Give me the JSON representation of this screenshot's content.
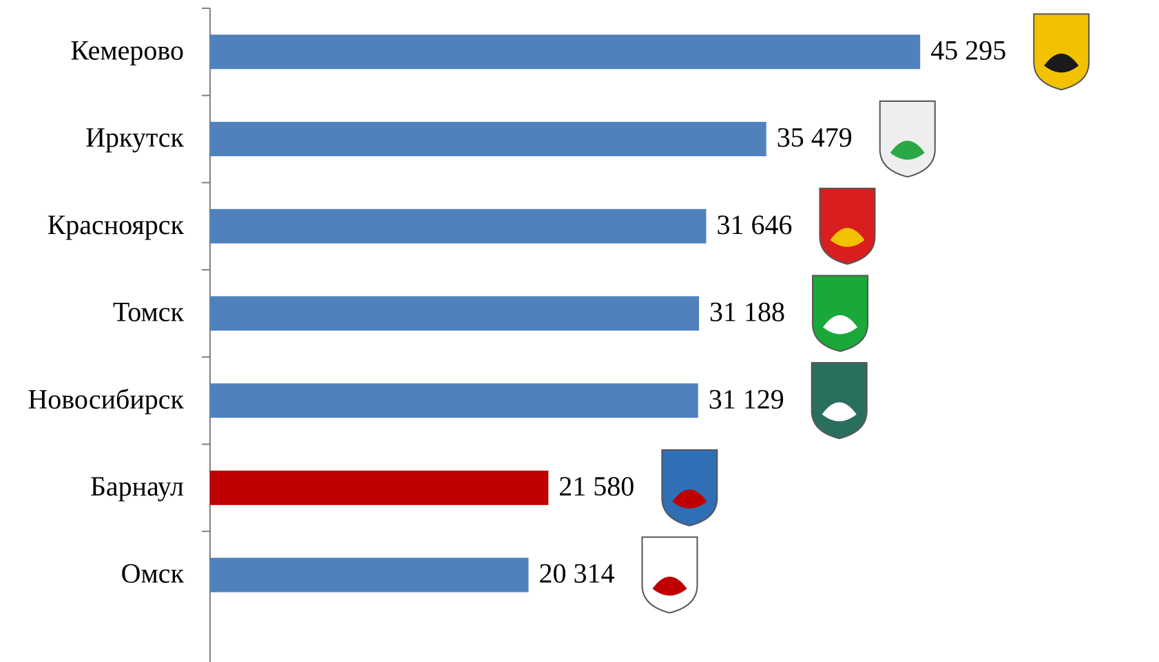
{
  "chart_data": {
    "type": "barh",
    "categories": [
      "Кемерово",
      "Иркутск",
      "Красноярск",
      "Томск",
      "Новосибирск",
      "Барнаул",
      "Омск"
    ],
    "values": [
      45295,
      35479,
      31646,
      31188,
      31129,
      21580,
      20314
    ],
    "value_labels": [
      "45 295",
      "35 479",
      "31 646",
      "31 188",
      "31 129",
      "21 580",
      "20 314"
    ],
    "colors": [
      "#4f81bd",
      "#4f81bd",
      "#4f81bd",
      "#4f81bd",
      "#4f81bd",
      "#c00000",
      "#4f81bd"
    ],
    "xlim": [
      0,
      60000
    ]
  }
}
